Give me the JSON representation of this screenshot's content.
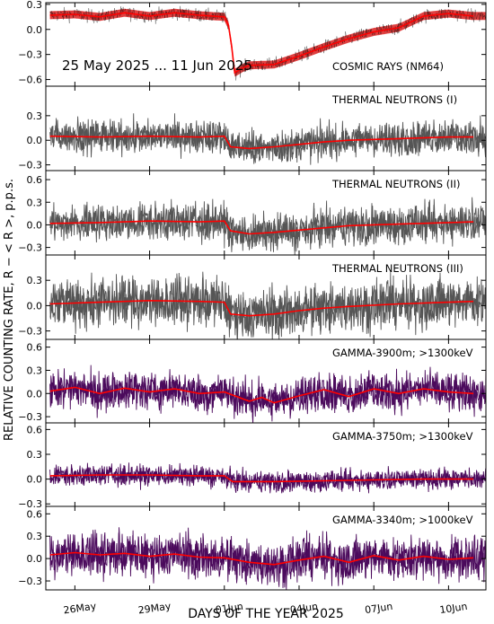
{
  "figure": {
    "date_range": "25 May 2025 ... 11 Jun 2025",
    "xlabel": "DAYS OF THE YEAR 2025",
    "ylabel": "RELATIVE COUNTING RATE,  R − < R >, p.p.s."
  },
  "colors": {
    "black_trace": "#000000",
    "gray_trace": "#555555",
    "purple_trace": "#4b0a5c",
    "smooth_line": "#ff0000",
    "red_band": "#d40000"
  },
  "chart_data": {
    "type": "line",
    "x_unit": "days",
    "xlim": [
      "2025-05-24 20:00",
      "2025-06-11 12:00"
    ],
    "x_ticks": [
      {
        "date": "2025-05-26",
        "label": "26May"
      },
      {
        "date": "2025-05-29",
        "label": "29May"
      },
      {
        "date": "2025-06-01",
        "label": "01Jun"
      },
      {
        "date": "2025-06-04",
        "label": "04Jun"
      },
      {
        "date": "2025-06-07",
        "label": "07Jun"
      },
      {
        "date": "2025-06-10",
        "label": "10Jun"
      }
    ],
    "panels": [
      {
        "label": "COSMIC RAYS (NM64)",
        "style": "cosmic",
        "ylim": [
          -0.68,
          0.32
        ],
        "yticks": [
          0.3,
          0.0,
          -0.3,
          -0.6
        ],
        "ytick_labels": [
          "0.3",
          "0.0",
          "−0.3",
          "−0.6"
        ],
        "noise": 0.04,
        "series": [
          {
            "x": [
              "2025-05-25",
              "2025-05-26",
              "2025-05-27",
              "2025-05-28",
              "2025-05-29",
              "2025-05-30",
              "2025-05-31",
              "2025-06-01",
              "2025-06-01 04:00",
              "2025-06-01 07:00",
              "2025-06-01 10:00",
              "2025-06-01 18:00",
              "2025-06-02",
              "2025-06-03",
              "2025-06-04",
              "2025-06-05",
              "2025-06-06",
              "2025-06-07",
              "2025-06-08",
              "2025-06-09",
              "2025-06-10",
              "2025-06-11"
            ],
            "y": [
              0.17,
              0.18,
              0.15,
              0.2,
              0.16,
              0.2,
              0.17,
              0.15,
              0.05,
              -0.2,
              -0.52,
              -0.46,
              -0.43,
              -0.42,
              -0.32,
              -0.21,
              -0.11,
              -0.03,
              0.02,
              0.16,
              0.19,
              0.16
            ]
          }
        ]
      },
      {
        "label": "THERMAL NEUTRONS (I)",
        "style": "gray",
        "ylim": [
          -0.37,
          0.66
        ],
        "yticks": [
          0.3,
          0.0,
          -0.3
        ],
        "ytick_labels": [
          "0.3",
          "0.0",
          "−0.3"
        ],
        "noise": 0.1,
        "series": [
          {
            "x": [
              "2025-05-25",
              "2025-05-27",
              "2025-05-29",
              "2025-05-31",
              "2025-06-01",
              "2025-06-01 06:00",
              "2025-06-02",
              "2025-06-03",
              "2025-06-04",
              "2025-06-05",
              "2025-06-06",
              "2025-06-08",
              "2025-06-10",
              "2025-06-11"
            ],
            "y": [
              0.05,
              0.04,
              0.05,
              0.04,
              0.05,
              -0.08,
              -0.1,
              -0.08,
              -0.05,
              -0.02,
              0.0,
              0.02,
              0.04,
              0.04
            ]
          }
        ]
      },
      {
        "label": "THERMAL NEUTRONS (II)",
        "style": "gray",
        "ylim": [
          -0.4,
          0.72
        ],
        "yticks": [
          0.6,
          0.3,
          0.0,
          -0.3
        ],
        "ytick_labels": [
          "0.6",
          "0.3",
          "0.0",
          "−0.3"
        ],
        "noise": 0.12,
        "series": [
          {
            "x": [
              "2025-05-25",
              "2025-05-27",
              "2025-05-29",
              "2025-05-31",
              "2025-06-01",
              "2025-06-01 06:00",
              "2025-06-02",
              "2025-06-03",
              "2025-06-04",
              "2025-06-05",
              "2025-06-06",
              "2025-06-08",
              "2025-06-10",
              "2025-06-11"
            ],
            "y": [
              0.02,
              0.03,
              0.05,
              0.04,
              0.05,
              -0.08,
              -0.12,
              -0.1,
              -0.07,
              -0.04,
              -0.01,
              0.01,
              0.03,
              0.04
            ]
          }
        ]
      },
      {
        "label": "THERMAL NEUTRONS (III)",
        "style": "gray",
        "ylim": [
          -0.4,
          0.6
        ],
        "yticks": [
          0.3,
          0.0,
          -0.3
        ],
        "ytick_labels": [
          "0.3",
          "0.0",
          "−0.3"
        ],
        "noise": 0.14,
        "series": [
          {
            "x": [
              "2025-05-25",
              "2025-05-27",
              "2025-05-29",
              "2025-05-31",
              "2025-06-01",
              "2025-06-01 06:00",
              "2025-06-02",
              "2025-06-03",
              "2025-06-04",
              "2025-06-05",
              "2025-06-06",
              "2025-06-08",
              "2025-06-10",
              "2025-06-11"
            ],
            "y": [
              0.02,
              0.04,
              0.06,
              0.05,
              0.04,
              -0.1,
              -0.12,
              -0.1,
              -0.06,
              -0.03,
              -0.01,
              0.02,
              0.04,
              0.05
            ]
          }
        ]
      },
      {
        "label": "GAMMA-3900m; >1300keV",
        "style": "purple",
        "ylim": [
          -0.38,
          0.7
        ],
        "yticks": [
          0.6,
          0.3,
          0.0,
          -0.3
        ],
        "ytick_labels": [
          "0.6",
          "0.3",
          "0.0",
          "−0.3"
        ],
        "noise": 0.12,
        "series": [
          {
            "x": [
              "2025-05-25",
              "2025-05-26",
              "2025-05-27",
              "2025-05-28",
              "2025-05-29",
              "2025-05-30",
              "2025-05-31",
              "2025-06-01",
              "2025-06-02",
              "2025-06-02 12:00",
              "2025-06-03",
              "2025-06-04",
              "2025-06-05",
              "2025-06-06",
              "2025-06-07",
              "2025-06-08",
              "2025-06-09",
              "2025-06-10",
              "2025-06-11"
            ],
            "y": [
              0.03,
              0.08,
              0.0,
              0.07,
              0.02,
              0.06,
              0.0,
              0.02,
              -0.1,
              -0.05,
              -0.12,
              -0.03,
              0.05,
              -0.04,
              0.06,
              0.0,
              0.06,
              0.02,
              0.0
            ]
          }
        ]
      },
      {
        "label": "GAMMA-3750m; >1300keV",
        "style": "purple",
        "ylim": [
          -0.33,
          0.68
        ],
        "yticks": [
          0.6,
          0.3,
          0.0,
          -0.3
        ],
        "ytick_labels": [
          "0.6",
          "0.3",
          "0.0",
          "−0.3"
        ],
        "noise": 0.06,
        "series": [
          {
            "x": [
              "2025-05-25",
              "2025-05-27",
              "2025-05-29",
              "2025-05-31",
              "2025-06-01",
              "2025-06-01 08:00",
              "2025-06-03",
              "2025-06-05",
              "2025-06-07",
              "2025-06-09",
              "2025-06-11"
            ],
            "y": [
              0.04,
              0.05,
              0.05,
              0.04,
              0.04,
              -0.03,
              -0.03,
              -0.02,
              -0.01,
              0.0,
              0.0
            ]
          }
        ]
      },
      {
        "label": "GAMMA-3340m; >1000keV",
        "style": "purple",
        "ylim": [
          -0.42,
          0.7
        ],
        "yticks": [
          0.6,
          0.3,
          0.0,
          -0.3
        ],
        "ytick_labels": [
          "0.6",
          "0.3",
          "0.0",
          "−0.3"
        ],
        "noise": 0.14,
        "series": [
          {
            "x": [
              "2025-05-25",
              "2025-05-26",
              "2025-05-27",
              "2025-05-28",
              "2025-05-29",
              "2025-05-30",
              "2025-05-31",
              "2025-06-01",
              "2025-06-02",
              "2025-06-03",
              "2025-06-04",
              "2025-06-05",
              "2025-06-06",
              "2025-06-07",
              "2025-06-08",
              "2025-06-09",
              "2025-06-10",
              "2025-06-11"
            ],
            "y": [
              0.05,
              0.08,
              0.05,
              0.07,
              0.03,
              0.06,
              0.02,
              0.01,
              -0.05,
              -0.08,
              -0.02,
              0.03,
              -0.05,
              0.04,
              -0.02,
              0.03,
              -0.01,
              0.01
            ]
          }
        ]
      }
    ]
  }
}
